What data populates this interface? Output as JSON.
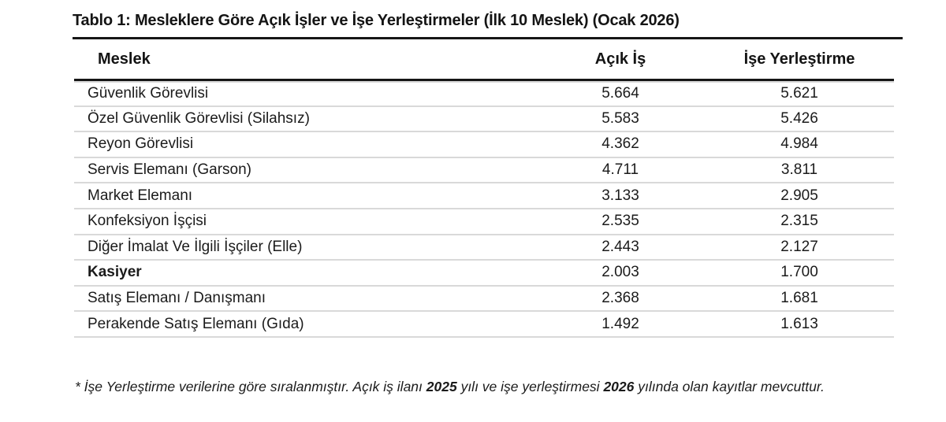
{
  "document": {
    "title": "Tablo 1: Mesleklere Göre Açık İşler ve İşe Yerleştirmeler (İlk 10 Meslek) (Ocak 2026)",
    "footnote": {
      "part1": "* İşe Yerleştirme verilerine göre sıralanmıştır. Açık iş ilanı ",
      "year1": "2025",
      "part2": " yılı ve işe yerleştirmesi ",
      "year2": "2026",
      "part3": " yılında olan kayıtlar mevcuttur."
    }
  },
  "table": {
    "columns": {
      "meslek": "Meslek",
      "acik_is": "Açık İş",
      "ise_yerlestirme": "İşe Yerleştirme"
    },
    "rows": [
      {
        "meslek": "Güvenlik Görevlisi",
        "acik_is": "5.664",
        "ise_yerlestirme": "5.621"
      },
      {
        "meslek": "Özel Güvenlik Görevlisi (Silahsız)",
        "acik_is": "5.583",
        "ise_yerlestirme": "5.426"
      },
      {
        "meslek": "Reyon Görevlisi",
        "acik_is": "4.362",
        "ise_yerlestirme": "4.984"
      },
      {
        "meslek": "Servis Elemanı (Garson)",
        "acik_is": "4.711",
        "ise_yerlestirme": "3.811"
      },
      {
        "meslek": "Market Elemanı",
        "acik_is": "3.133",
        "ise_yerlestirme": "2.905"
      },
      {
        "meslek": "Konfeksiyon İşçisi",
        "acik_is": "2.535",
        "ise_yerlestirme": "2.315"
      },
      {
        "meslek": "Diğer İmalat Ve İlgili İşçiler (Elle)",
        "acik_is": "2.443",
        "ise_yerlestirme": "2.127"
      },
      {
        "meslek": "Kasiyer",
        "acik_is": "2.003",
        "ise_yerlestirme": "1.700"
      },
      {
        "meslek": "Satış Elemanı / Danışmanı",
        "acik_is": "2.368",
        "ise_yerlestirme": "1.681"
      },
      {
        "meslek": "Perakende Satış Elemanı (Gıda)",
        "acik_is": "1.492",
        "ise_yerlestirme": "1.613"
      }
    ]
  },
  "colors": {
    "text": "#1b1b1b",
    "heavy_rule": "#161616",
    "light_rule": "#d9d9d9",
    "background": "#ffffff"
  }
}
